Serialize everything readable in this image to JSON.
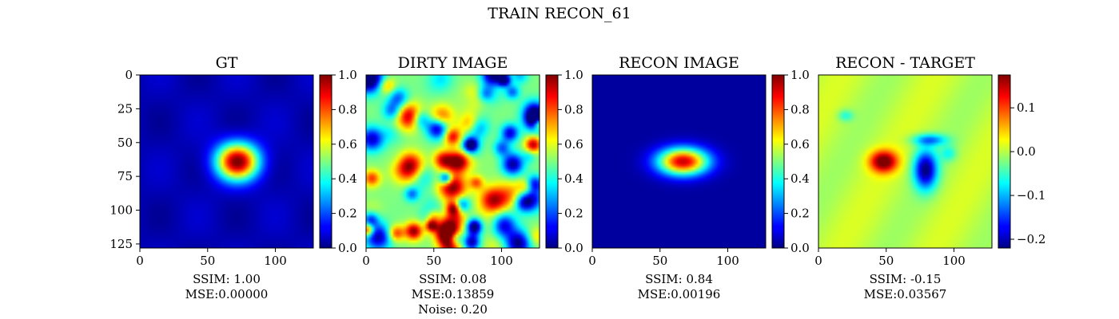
{
  "figure": {
    "suptitle": "TRAIN RECON_61"
  },
  "colors": {
    "cmap": "jet",
    "frame": "#000000"
  },
  "chart_data": [
    {
      "type": "heatmap",
      "title": "GT",
      "xticks": [
        "0",
        "50",
        "100"
      ],
      "xtick_values": [
        0,
        50,
        100
      ],
      "yticks": [
        "0",
        "25",
        "50",
        "75",
        "100",
        "125"
      ],
      "ytick_values": [
        0,
        25,
        50,
        75,
        100,
        125
      ],
      "xlim": [
        0,
        128
      ],
      "ylim": [
        128,
        0
      ],
      "colorbar": {
        "min": 0,
        "max": 1,
        "ticks": [
          "0.0",
          "0.2",
          "0.4",
          "0.6",
          "0.8",
          "1.0"
        ],
        "tick_values": [
          0,
          0.2,
          0.4,
          0.6,
          0.8,
          1.0
        ]
      },
      "stats": [
        "SSIM: 1.00",
        "MSE:0.00000"
      ],
      "pattern": "gaussian blob centered near (72, 64), peak 1.0 on a ~0.05 background"
    },
    {
      "type": "heatmap",
      "title": "DIRTY IMAGE",
      "xticks": [
        "0",
        "50",
        "100"
      ],
      "xtick_values": [
        0,
        50,
        100
      ],
      "yticks": [],
      "xlim": [
        0,
        128
      ],
      "ylim": [
        128,
        0
      ],
      "colorbar": {
        "min": 0,
        "max": 1,
        "ticks": [
          "0.0",
          "0.2",
          "0.4",
          "0.6",
          "0.8",
          "1.0"
        ],
        "tick_values": [
          0,
          0.2,
          0.4,
          0.6,
          0.8,
          1.0
        ]
      },
      "stats": [
        "SSIM: 0.08",
        "MSE:0.13859",
        "Noise: 0.20"
      ],
      "pattern": "noisy speckle field around 0.5 with a hot blob near (68, 64)"
    },
    {
      "type": "heatmap",
      "title": "RECON IMAGE",
      "xticks": [
        "0",
        "50",
        "100"
      ],
      "xtick_values": [
        0,
        50,
        100
      ],
      "yticks": [],
      "xlim": [
        0,
        128
      ],
      "ylim": [
        128,
        0
      ],
      "colorbar": {
        "min": 0,
        "max": 1,
        "ticks": [
          "0.0",
          "0.2",
          "0.4",
          "0.6",
          "0.8",
          "1.0"
        ],
        "tick_values": [
          0,
          0.2,
          0.4,
          0.6,
          0.8,
          1.0
        ]
      },
      "stats": [
        "SSIM: 0.84",
        "MSE:0.00196"
      ],
      "pattern": "elongated blob centered near (68, 64), peak ~0.9 on a near-zero background"
    },
    {
      "type": "heatmap",
      "title": "RECON - TARGET",
      "xticks": [
        "0",
        "50",
        "100"
      ],
      "xtick_values": [
        0,
        50,
        100
      ],
      "yticks": [],
      "xlim": [
        0,
        128
      ],
      "ylim": [
        128,
        0
      ],
      "colorbar": {
        "min": -0.22,
        "max": 0.175,
        "ticks": [
          "0.1",
          "0.0",
          "−0.1",
          "−0.2"
        ],
        "tick_values": [
          0.1,
          0.0,
          -0.1,
          -0.2
        ]
      },
      "stats": [
        "SSIM: -0.15",
        "MSE:0.03567"
      ],
      "pattern": "positive lobe near (50, 65) and negative lobe near (80, 70) on a ~0.0 background"
    }
  ]
}
